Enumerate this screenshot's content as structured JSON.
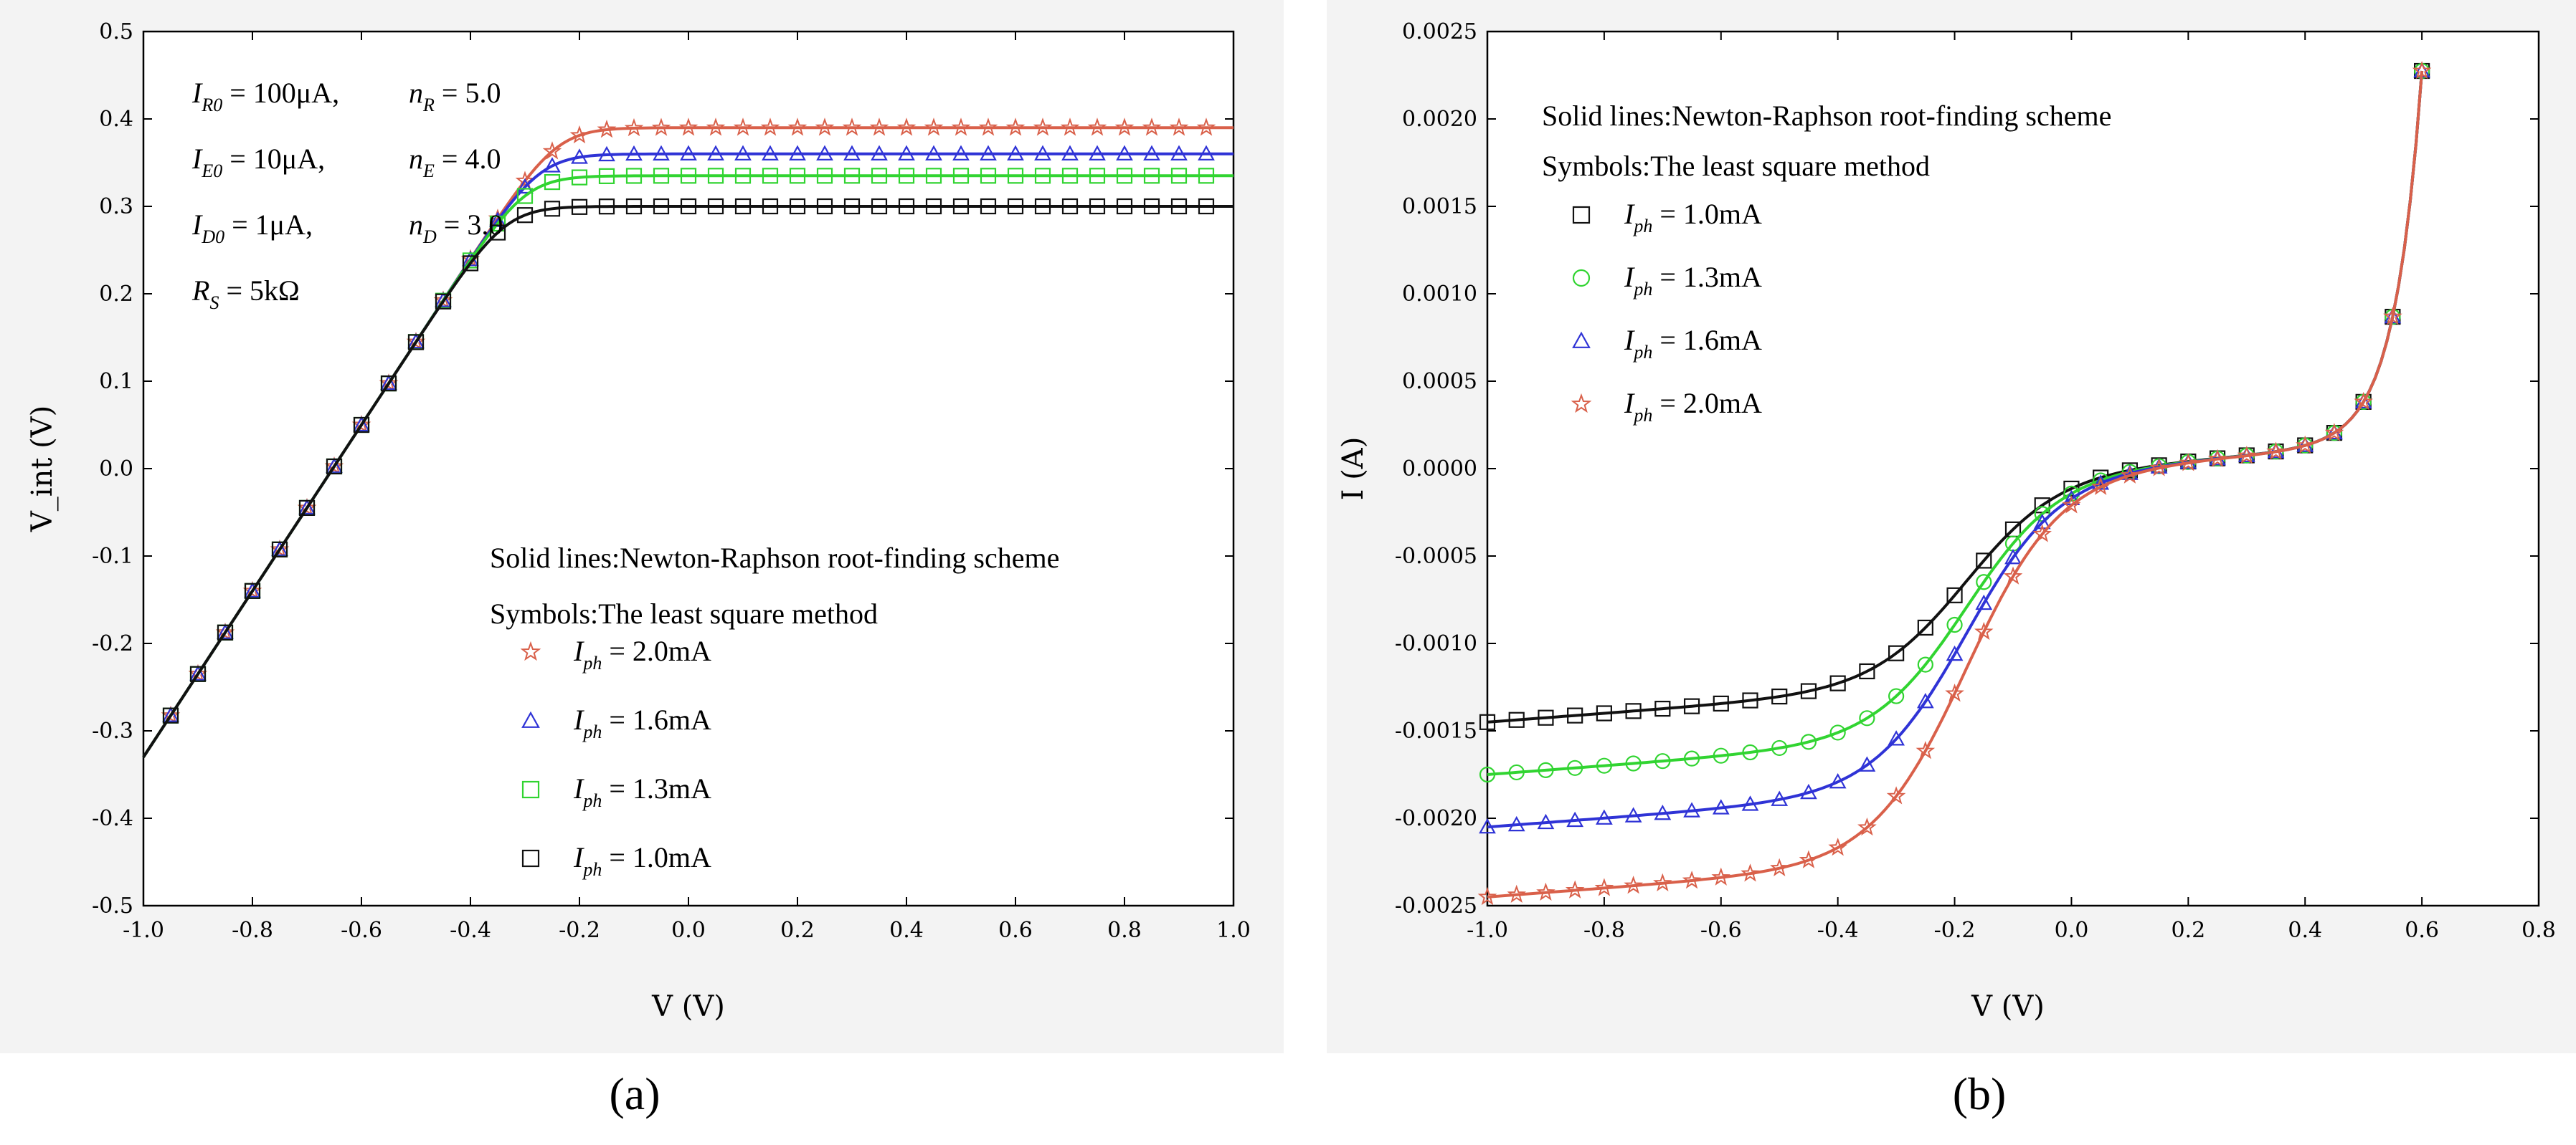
{
  "figure": {
    "label_a": "(a)",
    "label_b": "(b)"
  },
  "chart_data": [
    {
      "type": "line",
      "panel": "a",
      "title": "",
      "xlabel": "V (V)",
      "ylabel": "V_int (V)",
      "xlim": [
        -1.0,
        1.0
      ],
      "ylim": [
        -0.5,
        0.5
      ],
      "xticks": [
        "-1.0",
        "-0.8",
        "-0.6",
        "-0.4",
        "-0.2",
        "0.0",
        "0.2",
        "0.4",
        "0.6",
        "0.8",
        "1.0"
      ],
      "yticks": [
        "-0.5",
        "-0.4",
        "-0.3",
        "-0.2",
        "-0.1",
        "0.0",
        "0.1",
        "0.2",
        "0.3",
        "0.4",
        "0.5"
      ],
      "params": [
        {
          "main": "I",
          "sub": "R0",
          "value": " = 100μA,",
          "main2": "n",
          "sub2": "R",
          "value2": " = 5.0"
        },
        {
          "main": "I",
          "sub": "E0",
          "value": " = 10μA,",
          "main2": "n",
          "sub2": "E",
          "value2": " = 4.0"
        },
        {
          "main": "I",
          "sub": "D0",
          "value": " = 1μA,",
          "main2": "n",
          "sub2": "D",
          "value2": " = 3.0"
        },
        {
          "main": "R",
          "sub": "S",
          "value": " = 5kΩ"
        }
      ],
      "notes": [
        "Solid lines:Newton-Raphson root-finding scheme",
        "Symbols:The least square method"
      ],
      "legend_position": "lower-right",
      "series": [
        {
          "name": "I_ph = 2.0mA",
          "label": " = 2.0mA",
          "marker": "star",
          "color": "#d9604a",
          "sat": 0.39
        },
        {
          "name": "I_ph = 1.6mA",
          "label": " = 1.6mA",
          "marker": "triangle",
          "color": "#2f33d6",
          "sat": 0.36
        },
        {
          "name": "I_ph = 1.3mA",
          "label": " = 1.3mA",
          "marker": "square",
          "color": "#31d431",
          "sat": 0.335
        },
        {
          "name": "I_ph = 1.0mA",
          "label": " = 1.0mA",
          "marker": "square",
          "color": "#111111",
          "sat": 0.3
        }
      ]
    },
    {
      "type": "line",
      "panel": "b",
      "title": "",
      "xlabel": "V (V)",
      "ylabel": "I (A)",
      "xlim": [
        -1.0,
        0.8
      ],
      "ylim": [
        -0.0025,
        0.0025
      ],
      "xticks": [
        "-1.0",
        "-0.8",
        "-0.6",
        "-0.4",
        "-0.2",
        "0.0",
        "0.2",
        "0.4",
        "0.6",
        "0.8"
      ],
      "yticks": [
        "-0.0025",
        "-0.0020",
        "-0.0015",
        "-0.0010",
        "-0.0005",
        "0.0000",
        "0.0005",
        "0.0010",
        "0.0015",
        "0.0020",
        "0.0025"
      ],
      "notes": [
        "Solid lines:Newton-Raphson root-finding scheme",
        "Symbols:The least square method"
      ],
      "legend_position": "upper-left",
      "series": [
        {
          "name": "I_ph = 1.0mA",
          "label": " = 1.0mA",
          "marker": "square",
          "color": "#111111",
          "plateau": -0.0012
        },
        {
          "name": "I_ph = 1.3mA",
          "label": " = 1.3mA",
          "marker": "circle",
          "color": "#31d431",
          "plateau": -0.0015
        },
        {
          "name": "I_ph = 1.6mA",
          "label": " = 1.6mA",
          "marker": "triangle",
          "color": "#2f33d6",
          "plateau": -0.0018
        },
        {
          "name": "I_ph = 2.0mA",
          "label": " = 2.0mA",
          "marker": "star",
          "color": "#d9604a",
          "plateau": -0.0022
        }
      ]
    }
  ]
}
